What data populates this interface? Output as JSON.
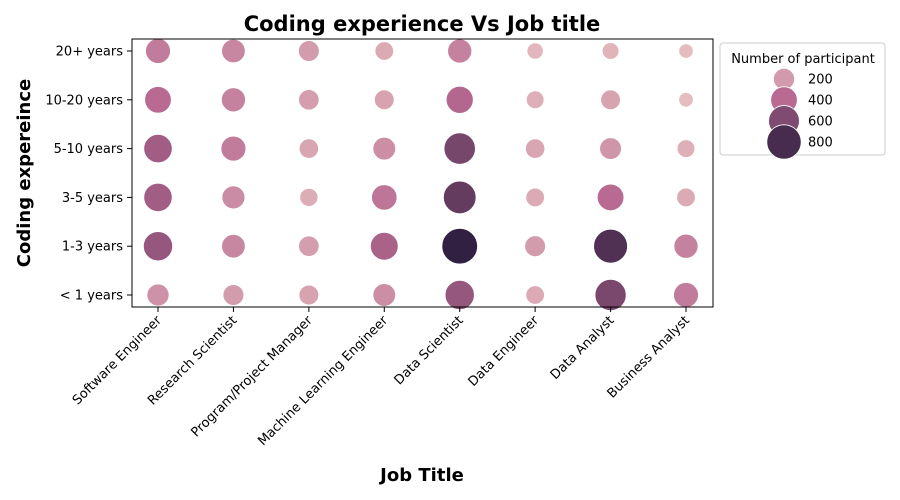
{
  "chart_data": {
    "type": "scatter",
    "title": "Coding experience Vs Job title",
    "xlabel": "Job Title",
    "ylabel": "Coding expereince",
    "categories_x": [
      "Software Engineer",
      "Research Scientist",
      "Program/Project Manager",
      "Machine Learning Engineer",
      "Data Scientist",
      "Data Engineer",
      "Data Analyst",
      "Business Analyst"
    ],
    "categories_y": [
      "20+ years",
      "10-20 years",
      "5-10 years",
      "3-5 years",
      "1-3 years",
      "< 1 years"
    ],
    "size_legend": {
      "title": "Number of participant",
      "entries": [
        {
          "label": "200",
          "value": 200
        },
        {
          "label": "400",
          "value": 400
        },
        {
          "label": "600",
          "value": 600
        },
        {
          "label": "800",
          "value": 800
        }
      ],
      "placement": "outside upper right"
    },
    "size_range": [
      0,
      900
    ],
    "colors": {
      "low": "#ecc9c6",
      "mid": "#b76991",
      "high": "#2b1d3e"
    },
    "points": [
      {
        "x": "Software Engineer",
        "y": "20+ years",
        "count": 330
      },
      {
        "x": "Software Engineer",
        "y": "10-20 years",
        "count": 400
      },
      {
        "x": "Software Engineer",
        "y": "5-10 years",
        "count": 480
      },
      {
        "x": "Software Engineer",
        "y": "3-5 years",
        "count": 480
      },
      {
        "x": "Software Engineer",
        "y": "1-3 years",
        "count": 520
      },
      {
        "x": "Software Engineer",
        "y": "< 1 years",
        "count": 230
      },
      {
        "x": "Research Scientist",
        "y": "20+ years",
        "count": 280
      },
      {
        "x": "Research Scientist",
        "y": "10-20 years",
        "count": 300
      },
      {
        "x": "Research Scientist",
        "y": "5-10 years",
        "count": 330
      },
      {
        "x": "Research Scientist",
        "y": "3-5 years",
        "count": 260
      },
      {
        "x": "Research Scientist",
        "y": "1-3 years",
        "count": 280
      },
      {
        "x": "Research Scientist",
        "y": "< 1 years",
        "count": 190
      },
      {
        "x": "Program/Project Manager",
        "y": "20+ years",
        "count": 190
      },
      {
        "x": "Program/Project Manager",
        "y": "10-20 years",
        "count": 180
      },
      {
        "x": "Program/Project Manager",
        "y": "5-10 years",
        "count": 150
      },
      {
        "x": "Program/Project Manager",
        "y": "3-5 years",
        "count": 120
      },
      {
        "x": "Program/Project Manager",
        "y": "1-3 years",
        "count": 180
      },
      {
        "x": "Program/Project Manager",
        "y": "< 1 years",
        "count": 160
      },
      {
        "x": "Machine Learning Engineer",
        "y": "20+ years",
        "count": 130
      },
      {
        "x": "Machine Learning Engineer",
        "y": "10-20 years",
        "count": 160
      },
      {
        "x": "Machine Learning Engineer",
        "y": "5-10 years",
        "count": 250
      },
      {
        "x": "Machine Learning Engineer",
        "y": "3-5 years",
        "count": 350
      },
      {
        "x": "Machine Learning Engineer",
        "y": "1-3 years",
        "count": 450
      },
      {
        "x": "Machine Learning Engineer",
        "y": "< 1 years",
        "count": 250
      },
      {
        "x": "Data Scientist",
        "y": "20+ years",
        "count": 300
      },
      {
        "x": "Data Scientist",
        "y": "10-20 years",
        "count": 420
      },
      {
        "x": "Data Scientist",
        "y": "5-10 years",
        "count": 630
      },
      {
        "x": "Data Scientist",
        "y": "3-5 years",
        "count": 700
      },
      {
        "x": "Data Scientist",
        "y": "1-3 years",
        "count": 880
      },
      {
        "x": "Data Scientist",
        "y": "< 1 years",
        "count": 520
      },
      {
        "x": "Data Engineer",
        "y": "20+ years",
        "count": 80
      },
      {
        "x": "Data Engineer",
        "y": "10-20 years",
        "count": 110
      },
      {
        "x": "Data Engineer",
        "y": "5-10 years",
        "count": 150
      },
      {
        "x": "Data Engineer",
        "y": "3-5 years",
        "count": 130
      },
      {
        "x": "Data Engineer",
        "y": "1-3 years",
        "count": 190
      },
      {
        "x": "Data Engineer",
        "y": "< 1 years",
        "count": 130
      },
      {
        "x": "Data Analyst",
        "y": "20+ years",
        "count": 90
      },
      {
        "x": "Data Analyst",
        "y": "10-20 years",
        "count": 160
      },
      {
        "x": "Data Analyst",
        "y": "5-10 years",
        "count": 220
      },
      {
        "x": "Data Analyst",
        "y": "3-5 years",
        "count": 400
      },
      {
        "x": "Data Analyst",
        "y": "1-3 years",
        "count": 770
      },
      {
        "x": "Data Analyst",
        "y": "< 1 years",
        "count": 620
      },
      {
        "x": "Business Analyst",
        "y": "20+ years",
        "count": 50
      },
      {
        "x": "Business Analyst",
        "y": "10-20 years",
        "count": 50
      },
      {
        "x": "Business Analyst",
        "y": "5-10 years",
        "count": 110
      },
      {
        "x": "Business Analyst",
        "y": "3-5 years",
        "count": 130
      },
      {
        "x": "Business Analyst",
        "y": "1-3 years",
        "count": 300
      },
      {
        "x": "Business Analyst",
        "y": "< 1 years",
        "count": 330
      }
    ]
  }
}
